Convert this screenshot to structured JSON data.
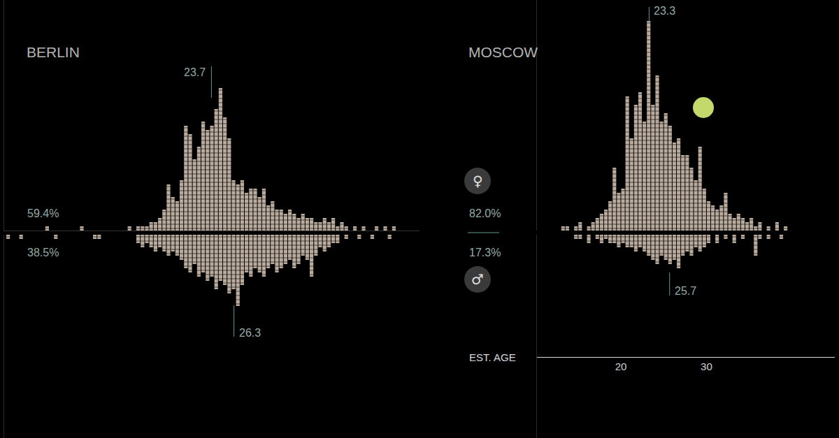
{
  "chart_data": [
    {
      "type": "bar",
      "title": "BERLIN",
      "xlim": [
        -0.2,
        47.7
      ],
      "xticks": [],
      "ylim": [
        0,
        55
      ],
      "y2lim": [
        0,
        48.5
      ],
      "tick_labels": false,
      "series": [
        {
          "color": "#b9ab9d",
          "mean": 23.7,
          "share_label": "59.4%",
          "x": [
            4.75,
            8.75,
            14.25,
            15.25,
            15.75,
            16.25,
            16.75,
            17.25,
            17.75,
            18.25,
            18.75,
            19.25,
            19.75,
            20.25,
            20.75,
            21.25,
            21.75,
            22.25,
            22.75,
            23.25,
            23.75,
            24.25,
            24.75,
            25.25,
            25.75,
            26.25,
            26.75,
            27.25,
            27.75,
            28.25,
            28.75,
            29.25,
            29.75,
            30.25,
            30.75,
            31.25,
            31.75,
            32.25,
            32.75,
            33.25,
            33.75,
            34.25,
            34.75,
            35.25,
            35.75,
            36.25,
            36.75,
            37.25,
            37.75,
            38.25,
            38.75,
            39.25,
            40.25,
            41.25,
            42.75,
            43.75,
            44.75
          ],
          "values": [
            1,
            1,
            1,
            1,
            1,
            1,
            2,
            2,
            3,
            5,
            11,
            8,
            7,
            12,
            25,
            23,
            17,
            20,
            26,
            24,
            25,
            29,
            34,
            27,
            22,
            12,
            11,
            12,
            9,
            10,
            10,
            8,
            10,
            6,
            7,
            5,
            5,
            4,
            5,
            4,
            3,
            4,
            3,
            3,
            2,
            2,
            3,
            2,
            3,
            1,
            2,
            1,
            1,
            1,
            1,
            1,
            1
          ]
        },
        {
          "color": "#b9ab9d",
          "mean": 26.3,
          "share_label": "38.5%",
          "axis": "y2",
          "x": [
            0.25,
            1.75,
            5.75,
            10.25,
            10.75,
            15.25,
            15.75,
            16.25,
            16.75,
            17.25,
            17.75,
            18.25,
            18.75,
            19.25,
            19.75,
            20.25,
            20.75,
            21.25,
            21.75,
            22.25,
            22.75,
            23.25,
            23.75,
            24.25,
            24.75,
            25.25,
            25.75,
            26.25,
            26.75,
            27.25,
            27.75,
            28.25,
            28.75,
            29.25,
            29.75,
            30.25,
            30.75,
            31.25,
            31.75,
            32.25,
            32.75,
            33.25,
            33.75,
            34.25,
            34.75,
            35.25,
            35.75,
            36.25,
            36.75,
            37.25,
            37.75,
            38.25,
            39.25,
            40.75,
            42.25,
            44.25
          ],
          "values": [
            1,
            1,
            1,
            1,
            1,
            2,
            3,
            2,
            3,
            4,
            3,
            4,
            5,
            4,
            5,
            6,
            8,
            9,
            7,
            10,
            9,
            11,
            10,
            13,
            11,
            12,
            14,
            13,
            17,
            12,
            9,
            10,
            8,
            9,
            10,
            8,
            7,
            9,
            8,
            7,
            6,
            8,
            7,
            5,
            6,
            10,
            5,
            3,
            4,
            3,
            2,
            2,
            1,
            1,
            1,
            1
          ]
        }
      ]
    },
    {
      "type": "bar",
      "title": "MOSCOW",
      "xlabel": "EST. AGE",
      "xlim": [
        10.2,
        45.0
      ],
      "xticks": [
        20,
        30
      ],
      "ylim": [
        0,
        55
      ],
      "y2lim": [
        0,
        48.5
      ],
      "tick_labels": "x",
      "series": [
        {
          "color": "#b9ab9d",
          "mean": 23.3,
          "share_label": "82.0%",
          "symbol": "♀",
          "x": [
            13.25,
            13.75,
            14.75,
            15.25,
            16.25,
            16.75,
            17.25,
            17.75,
            18.25,
            18.75,
            19.25,
            19.75,
            20.25,
            20.75,
            21.25,
            21.75,
            22.25,
            22.75,
            23.25,
            23.75,
            24.25,
            24.75,
            25.25,
            25.75,
            26.25,
            26.75,
            27.25,
            27.75,
            28.25,
            28.75,
            29.25,
            29.75,
            30.25,
            30.75,
            31.25,
            31.75,
            32.25,
            32.75,
            33.25,
            33.75,
            34.25,
            34.75,
            35.25,
            35.75,
            36.25,
            37.25,
            38.25,
            39.25
          ],
          "values": [
            1,
            1,
            1,
            2,
            1,
            2,
            3,
            4,
            5,
            7,
            15,
            9,
            10,
            32,
            22,
            30,
            33,
            26,
            50,
            30,
            37,
            26,
            28,
            25,
            21,
            22,
            18,
            18,
            15,
            12,
            20,
            10,
            7,
            6,
            5,
            6,
            9,
            4,
            3,
            4,
            3,
            2,
            3,
            1,
            2,
            1,
            2,
            1
          ]
        },
        {
          "color": "#b9ab9d",
          "mean": 25.7,
          "share_label": "17.3%",
          "symbol": "♂",
          "axis": "y2",
          "x": [
            14.75,
            15.25,
            16.25,
            17.25,
            17.75,
            18.25,
            18.75,
            19.25,
            19.75,
            20.25,
            20.75,
            21.25,
            21.75,
            22.25,
            22.75,
            23.25,
            23.75,
            24.25,
            24.75,
            25.25,
            25.75,
            26.25,
            26.75,
            27.25,
            27.75,
            28.25,
            28.75,
            29.25,
            29.75,
            30.25,
            31.25,
            32.25,
            33.25,
            34.25,
            35.75,
            36.25,
            37.25,
            38.75
          ],
          "values": [
            1,
            1,
            2,
            1,
            2,
            1,
            2,
            2,
            3,
            2,
            3,
            3,
            4,
            3,
            4,
            5,
            6,
            7,
            5,
            6,
            7,
            6,
            8,
            5,
            4,
            5,
            3,
            4,
            3,
            2,
            2,
            1,
            2,
            1,
            5,
            1,
            1,
            1
          ]
        }
      ]
    }
  ]
}
